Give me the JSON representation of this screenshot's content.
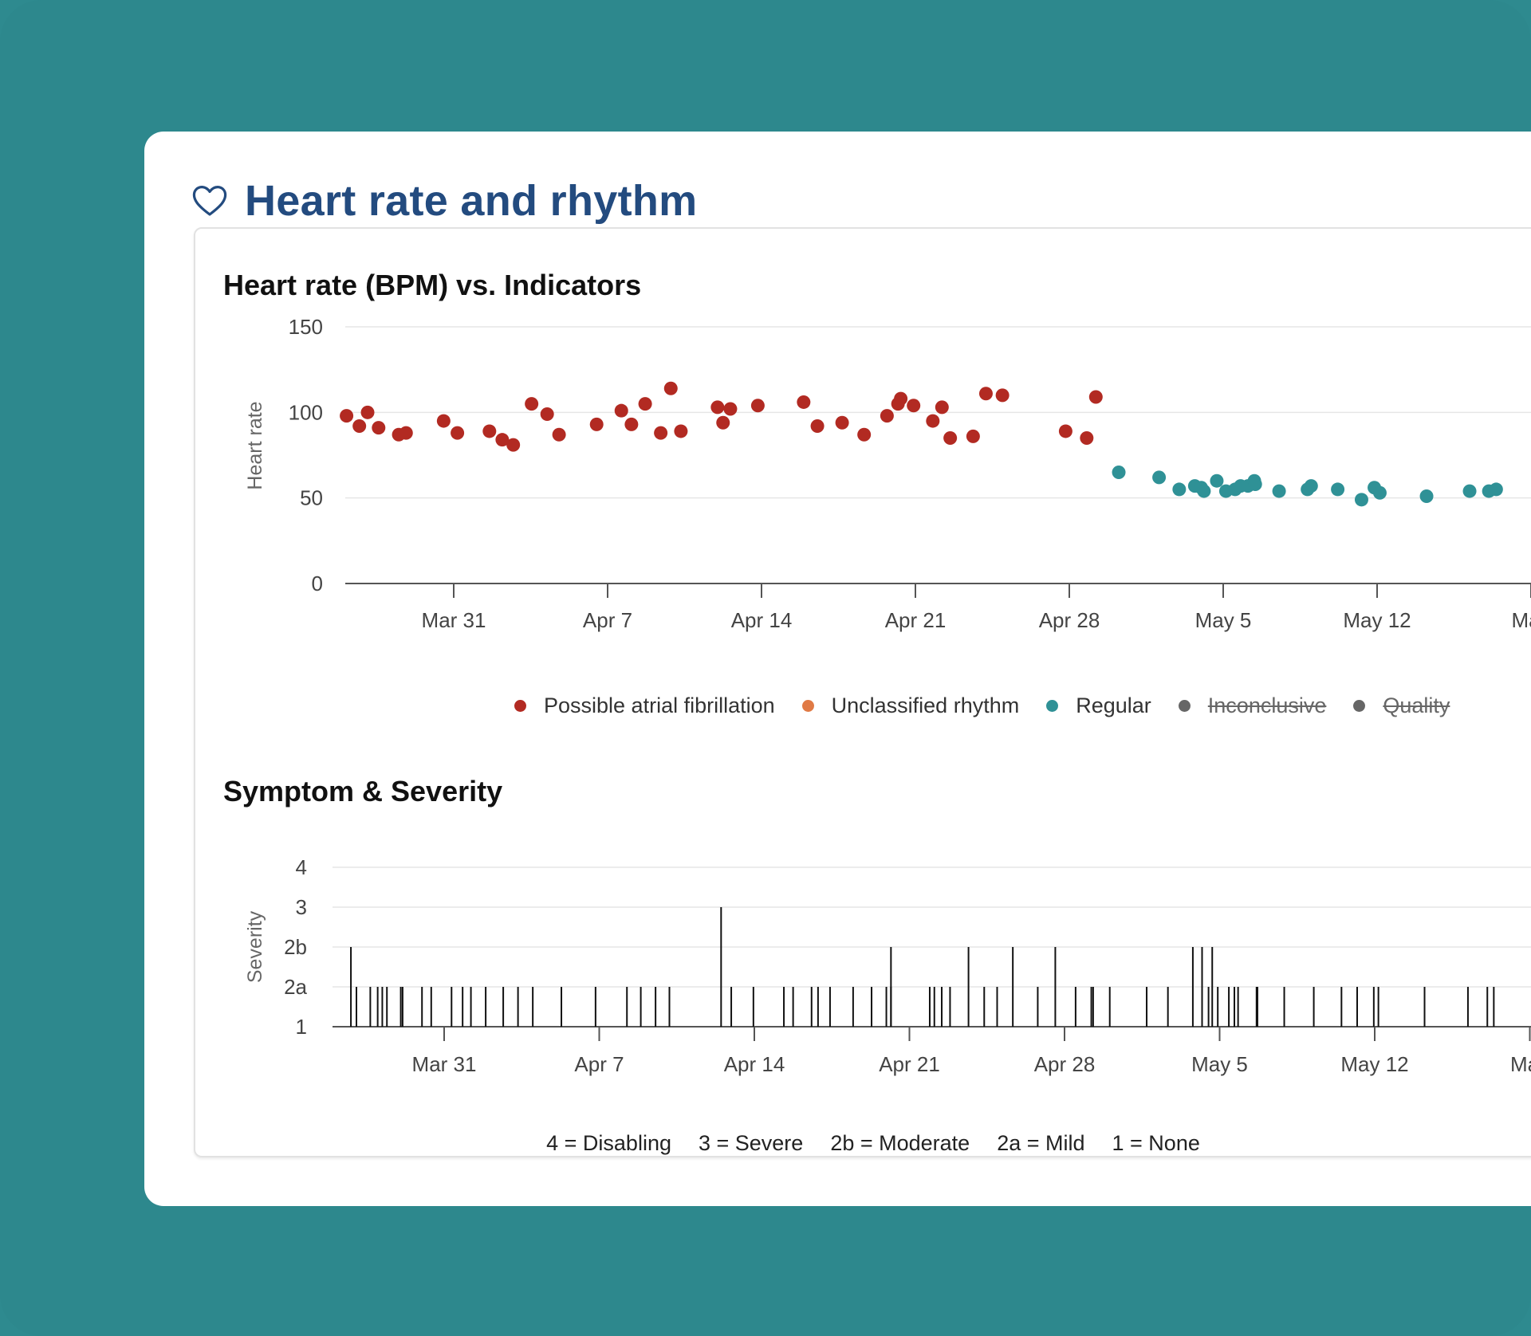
{
  "page": {
    "title": "Heart rate and rhythm",
    "colors": {
      "background": "#2d888d",
      "title": "#234b7f",
      "afib": "#b22a22",
      "unclassified": "#e07a45",
      "regular": "#2f9196",
      "disabled": "#666666"
    },
    "icons": {
      "title_icon": "heart-outline-icon"
    }
  },
  "hr_chart": {
    "title": "Heart rate (BPM) vs. Indicators",
    "legend": [
      {
        "label": "Possible atrial fibrillation",
        "color": "#b22a22",
        "disabled": false
      },
      {
        "label": "Unclassified rhythm",
        "color": "#e07a45",
        "disabled": false
      },
      {
        "label": "Regular",
        "color": "#2f9196",
        "disabled": false
      },
      {
        "label": "Inconclusive",
        "color": "#666666",
        "disabled": true
      },
      {
        "label": "Quality",
        "color": "#666666",
        "disabled": true
      }
    ]
  },
  "severity_chart": {
    "title": "Symptom & Severity",
    "legend": [
      "4 = Disabling",
      "3 = Severe",
      "2b = Moderate",
      "2a = Mild",
      "1 = None"
    ]
  },
  "chart_data": [
    {
      "type": "scatter",
      "title": "Heart rate (BPM) vs. Indicators",
      "ylabel": "Heart rate",
      "xlabel": "",
      "ylim": [
        0,
        150
      ],
      "yticks": [
        "150",
        "100",
        "50",
        "0"
      ],
      "xticks": [
        {
          "date": "2024-03-31",
          "label": "Mar 31"
        },
        {
          "date": "2024-04-07",
          "label": "Apr 7"
        },
        {
          "date": "2024-04-14",
          "label": "Apr 14"
        },
        {
          "date": "2024-04-21",
          "label": "Apr 21"
        },
        {
          "date": "2024-04-28",
          "label": "Apr 28"
        },
        {
          "date": "2024-05-05",
          "label": "May 5"
        },
        {
          "date": "2024-05-12",
          "label": "May 12"
        },
        {
          "date": "2024-05-19",
          "label": "May"
        }
      ],
      "grid": true,
      "legend_position": "bottom",
      "series": [
        {
          "name": "Possible atrial fibrillation",
          "color": "#b22a22",
          "points": [
            {
              "x": "2024-03-26 03:00",
              "y": 98
            },
            {
              "x": "2024-03-26 17:00",
              "y": 92
            },
            {
              "x": "2024-03-27 02:00",
              "y": 100
            },
            {
              "x": "2024-03-27 14:00",
              "y": 91
            },
            {
              "x": "2024-03-28 12:00",
              "y": 87
            },
            {
              "x": "2024-03-28 20:00",
              "y": 88
            },
            {
              "x": "2024-03-30 13:00",
              "y": 95
            },
            {
              "x": "2024-03-31 04:00",
              "y": 88
            },
            {
              "x": "2024-04-01 15:00",
              "y": 89
            },
            {
              "x": "2024-04-02 05:00",
              "y": 84
            },
            {
              "x": "2024-04-02 17:00",
              "y": 81
            },
            {
              "x": "2024-04-03 13:00",
              "y": 105
            },
            {
              "x": "2024-04-04 06:00",
              "y": 99
            },
            {
              "x": "2024-04-04 19:00",
              "y": 87
            },
            {
              "x": "2024-04-06 12:00",
              "y": 93
            },
            {
              "x": "2024-04-07 15:00",
              "y": 101
            },
            {
              "x": "2024-04-08 02:00",
              "y": 93
            },
            {
              "x": "2024-04-08 17:00",
              "y": 105
            },
            {
              "x": "2024-04-09 10:00",
              "y": 88
            },
            {
              "x": "2024-04-09 21:00",
              "y": 114
            },
            {
              "x": "2024-04-10 08:00",
              "y": 89
            },
            {
              "x": "2024-04-12 00:00",
              "y": 103
            },
            {
              "x": "2024-04-12 06:00",
              "y": 94
            },
            {
              "x": "2024-04-12 14:00",
              "y": 102
            },
            {
              "x": "2024-04-13 20:00",
              "y": 104
            },
            {
              "x": "2024-04-15 22:00",
              "y": 106
            },
            {
              "x": "2024-04-16 13:00",
              "y": 92
            },
            {
              "x": "2024-04-17 16:00",
              "y": 94
            },
            {
              "x": "2024-04-18 16:00",
              "y": 87
            },
            {
              "x": "2024-04-19 17:00",
              "y": 98
            },
            {
              "x": "2024-04-20 05:00",
              "y": 105
            },
            {
              "x": "2024-04-20 08:00",
              "y": 108
            },
            {
              "x": "2024-04-20 22:00",
              "y": 104
            },
            {
              "x": "2024-04-21 19:00",
              "y": 95
            },
            {
              "x": "2024-04-22 05:00",
              "y": 103
            },
            {
              "x": "2024-04-22 14:00",
              "y": 85
            },
            {
              "x": "2024-04-23 15:00",
              "y": 86
            },
            {
              "x": "2024-04-24 05:00",
              "y": 111
            },
            {
              "x": "2024-04-24 23:00",
              "y": 110
            },
            {
              "x": "2024-04-27 20:00",
              "y": 89
            },
            {
              "x": "2024-04-28 19:00",
              "y": 85
            },
            {
              "x": "2024-04-29 05:00",
              "y": 109
            }
          ]
        },
        {
          "name": "Unclassified rhythm",
          "color": "#e07a45",
          "points": []
        },
        {
          "name": "Regular",
          "color": "#2f9196",
          "points": [
            {
              "x": "2024-04-30 06:00",
              "y": 65
            },
            {
              "x": "2024-05-02 02:00",
              "y": 62
            },
            {
              "x": "2024-05-03 00:00",
              "y": 55
            },
            {
              "x": "2024-05-03 17:00",
              "y": 57
            },
            {
              "x": "2024-05-04 00:00",
              "y": 56
            },
            {
              "x": "2024-05-04 03:00",
              "y": 54
            },
            {
              "x": "2024-05-04 17:00",
              "y": 60
            },
            {
              "x": "2024-05-05 03:00",
              "y": 54
            },
            {
              "x": "2024-05-05 13:00",
              "y": 55
            },
            {
              "x": "2024-05-05 19:00",
              "y": 57
            },
            {
              "x": "2024-05-06 03:00",
              "y": 57
            },
            {
              "x": "2024-05-06 10:00",
              "y": 60
            },
            {
              "x": "2024-05-06 11:00",
              "y": 58
            },
            {
              "x": "2024-05-07 13:00",
              "y": 54
            },
            {
              "x": "2024-05-08 20:00",
              "y": 55
            },
            {
              "x": "2024-05-09 00:00",
              "y": 57
            },
            {
              "x": "2024-05-10 05:00",
              "y": 55
            },
            {
              "x": "2024-05-11 07:00",
              "y": 49
            },
            {
              "x": "2024-05-11 21:00",
              "y": 56
            },
            {
              "x": "2024-05-12 03:00",
              "y": 53
            },
            {
              "x": "2024-05-14 06:00",
              "y": 51
            },
            {
              "x": "2024-05-16 05:00",
              "y": 54
            },
            {
              "x": "2024-05-17 02:00",
              "y": 54
            },
            {
              "x": "2024-05-17 10:00",
              "y": 55
            }
          ]
        },
        {
          "name": "Inconclusive",
          "color": "#666666",
          "points": []
        },
        {
          "name": "Quality",
          "color": "#666666",
          "points": []
        }
      ]
    },
    {
      "type": "bar",
      "title": "Symptom & Severity",
      "ylabel": "Severity",
      "xlabel": "",
      "levels": [
        "1",
        "2a",
        "2b",
        "3",
        "4"
      ],
      "xticks": [
        {
          "date": "2024-03-31",
          "label": "Mar 31"
        },
        {
          "date": "2024-04-07",
          "label": "Apr 7"
        },
        {
          "date": "2024-04-14",
          "label": "Apr 14"
        },
        {
          "date": "2024-04-21",
          "label": "Apr 21"
        },
        {
          "date": "2024-04-28",
          "label": "Apr 28"
        },
        {
          "date": "2024-05-05",
          "label": "May 5"
        },
        {
          "date": "2024-05-12",
          "label": "May 12"
        },
        {
          "date": "2024-05-19",
          "label": "May"
        }
      ],
      "grid": true,
      "events": [
        {
          "x": "2024-03-26 19:00",
          "level": "2b"
        },
        {
          "x": "2024-03-27 01:00",
          "level": "2a"
        },
        {
          "x": "2024-03-27 16:00",
          "level": "2a"
        },
        {
          "x": "2024-03-28 00:00",
          "level": "2a"
        },
        {
          "x": "2024-03-28 05:00",
          "level": "2a"
        },
        {
          "x": "2024-03-28 10:00",
          "level": "2a"
        },
        {
          "x": "2024-03-29 01:00",
          "level": "2a"
        },
        {
          "x": "2024-03-29 03:00",
          "level": "2a"
        },
        {
          "x": "2024-03-30 00:00",
          "level": "2a"
        },
        {
          "x": "2024-03-30 10:00",
          "level": "2a"
        },
        {
          "x": "2024-03-31 08:00",
          "level": "2a"
        },
        {
          "x": "2024-03-31 20:00",
          "level": "2a"
        },
        {
          "x": "2024-04-01 05:00",
          "level": "2a"
        },
        {
          "x": "2024-04-01 21:00",
          "level": "2a"
        },
        {
          "x": "2024-04-02 16:00",
          "level": "2a"
        },
        {
          "x": "2024-04-03 08:00",
          "level": "2a"
        },
        {
          "x": "2024-04-04 00:00",
          "level": "2a"
        },
        {
          "x": "2024-04-05 07:00",
          "level": "2a"
        },
        {
          "x": "2024-04-06 20:00",
          "level": "2a"
        },
        {
          "x": "2024-04-08 06:00",
          "level": "2a"
        },
        {
          "x": "2024-04-08 21:00",
          "level": "2a"
        },
        {
          "x": "2024-04-09 13:00",
          "level": "2a"
        },
        {
          "x": "2024-04-10 04:00",
          "level": "2a"
        },
        {
          "x": "2024-04-12 12:00",
          "level": "3"
        },
        {
          "x": "2024-04-12 23:00",
          "level": "2a"
        },
        {
          "x": "2024-04-13 23:00",
          "level": "2a"
        },
        {
          "x": "2024-04-15 08:00",
          "level": "2a"
        },
        {
          "x": "2024-04-15 18:00",
          "level": "2a"
        },
        {
          "x": "2024-04-16 14:00",
          "level": "2a"
        },
        {
          "x": "2024-04-16 21:00",
          "level": "2a"
        },
        {
          "x": "2024-04-17 10:00",
          "level": "2a"
        },
        {
          "x": "2024-04-18 11:00",
          "level": "2a"
        },
        {
          "x": "2024-04-19 07:00",
          "level": "2a"
        },
        {
          "x": "2024-04-19 23:00",
          "level": "2a"
        },
        {
          "x": "2024-04-20 04:00",
          "level": "2b"
        },
        {
          "x": "2024-04-20 04:00",
          "level": "2a"
        },
        {
          "x": "2024-04-21 22:00",
          "level": "2a"
        },
        {
          "x": "2024-04-22 03:00",
          "level": "2a"
        },
        {
          "x": "2024-04-22 11:00",
          "level": "2a"
        },
        {
          "x": "2024-04-22 20:00",
          "level": "2a"
        },
        {
          "x": "2024-04-23 16:00",
          "level": "2b"
        },
        {
          "x": "2024-04-24 09:00",
          "level": "2a"
        },
        {
          "x": "2024-04-24 23:00",
          "level": "2a"
        },
        {
          "x": "2024-04-25 16:00",
          "level": "2b"
        },
        {
          "x": "2024-04-26 19:00",
          "level": "2a"
        },
        {
          "x": "2024-04-27 14:00",
          "level": "2b"
        },
        {
          "x": "2024-04-28 12:00",
          "level": "2a"
        },
        {
          "x": "2024-04-29 05:00",
          "level": "2a"
        },
        {
          "x": "2024-04-29 07:00",
          "level": "2a"
        },
        {
          "x": "2024-04-30 01:00",
          "level": "2a"
        },
        {
          "x": "2024-05-01 17:00",
          "level": "2a"
        },
        {
          "x": "2024-05-02 16:00",
          "level": "2a"
        },
        {
          "x": "2024-05-03 19:00",
          "level": "2b"
        },
        {
          "x": "2024-05-04 05:00",
          "level": "2b"
        },
        {
          "x": "2024-05-04 12:00",
          "level": "2a"
        },
        {
          "x": "2024-05-04 16:00",
          "level": "2b"
        },
        {
          "x": "2024-05-04 22:00",
          "level": "2a"
        },
        {
          "x": "2024-05-05 10:00",
          "level": "2a"
        },
        {
          "x": "2024-05-05 16:00",
          "level": "2a"
        },
        {
          "x": "2024-05-05 20:00",
          "level": "2a"
        },
        {
          "x": "2024-05-06 16:00",
          "level": "2a"
        },
        {
          "x": "2024-05-06 17:00",
          "level": "2a"
        },
        {
          "x": "2024-05-07 22:00",
          "level": "2a"
        },
        {
          "x": "2024-05-09 06:00",
          "level": "2a"
        },
        {
          "x": "2024-05-10 12:00",
          "level": "2a"
        },
        {
          "x": "2024-05-11 05:00",
          "level": "2a"
        },
        {
          "x": "2024-05-11 23:00",
          "level": "2a"
        },
        {
          "x": "2024-05-12 04:00",
          "level": "2a"
        },
        {
          "x": "2024-05-14 06:00",
          "level": "2a"
        },
        {
          "x": "2024-05-16 05:00",
          "level": "2a"
        },
        {
          "x": "2024-05-17 02:00",
          "level": "2a"
        },
        {
          "x": "2024-05-17 09:00",
          "level": "2a"
        }
      ]
    }
  ]
}
